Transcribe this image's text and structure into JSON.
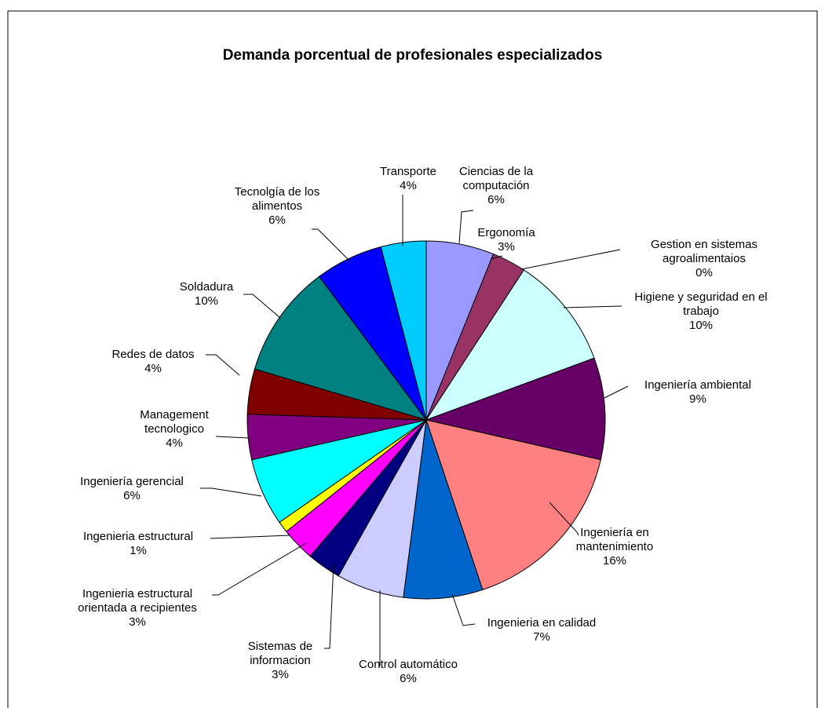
{
  "chart_data": {
    "type": "pie",
    "title": "Demanda porcentual  de profesionales especializados",
    "categories": [
      "Ciencias de la computación",
      "Ergonomía",
      "Gestion en sistemas agroalimentaios",
      "Higiene y seguridad en el trabajo",
      "Ingeniería ambiental",
      "Ingeniería en mantenimiento",
      "Ingenieria en calidad",
      "Control automático",
      "Sistemas de informacion",
      "Ingenieria estructural orientada a recipientes",
      "Ingenieria estructural",
      "Ingeniería gerencial",
      "Management tecnologico",
      "Redes de datos",
      "Soldadura",
      "Tecnolgía de los alimentos",
      "Transporte"
    ],
    "values": [
      6,
      3,
      0,
      10,
      9,
      16,
      7,
      6,
      3,
      3,
      1,
      6,
      4,
      4,
      10,
      6,
      4
    ],
    "value_labels": [
      "6%",
      "3%",
      "0%",
      "10%",
      "9%",
      "16%",
      "7%",
      "6%",
      "3%",
      "3%",
      "1%",
      "6%",
      "4%",
      "4%",
      "10%",
      "6%",
      "4%"
    ],
    "colors": [
      "#9999ff",
      "#993366",
      "#ffffcc",
      "#ccffff",
      "#660066",
      "#ff8080",
      "#0066cc",
      "#ccccff",
      "#000080",
      "#ff00ff",
      "#ffff00",
      "#00ffff",
      "#800080",
      "#800000",
      "#008080",
      "#0000ff",
      "#00ccff"
    ]
  }
}
